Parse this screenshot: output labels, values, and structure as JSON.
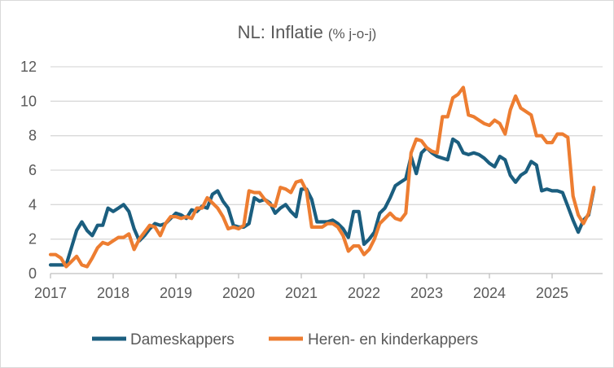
{
  "chart_data": {
    "type": "line",
    "title": "NL: Inflatie",
    "subtitle": "(% j-o-j)",
    "xlabel": "",
    "ylabel": "",
    "ylim": [
      0,
      12
    ],
    "yticks": [
      "0",
      "2",
      "4",
      "6",
      "8",
      "10",
      "12"
    ],
    "xticks": [
      "2017",
      "2018",
      "2019",
      "2020",
      "2021",
      "2022",
      "2023",
      "2024",
      "2025"
    ],
    "x_start": "2017-01",
    "frequency": "monthly",
    "grid": true,
    "legend_position": "bottom",
    "series": [
      {
        "name": "Dameskappers",
        "color": "#1b5e7f",
        "values": [
          0.5,
          0.5,
          0.5,
          0.5,
          1.5,
          2.5,
          3.0,
          2.5,
          2.2,
          2.8,
          2.8,
          3.8,
          3.6,
          3.8,
          4.0,
          3.6,
          2.6,
          1.9,
          2.2,
          2.6,
          2.9,
          2.8,
          2.9,
          3.2,
          3.5,
          3.4,
          3.2,
          3.7,
          3.6,
          3.9,
          3.8,
          4.6,
          4.8,
          4.2,
          3.8,
          2.8,
          2.7,
          2.7,
          2.9,
          4.4,
          4.2,
          4.3,
          4.1,
          3.5,
          3.8,
          4.0,
          3.6,
          3.3,
          4.9,
          4.9,
          4.3,
          3.0,
          3.0,
          3.0,
          3.1,
          2.9,
          2.6,
          2.1,
          3.6,
          3.6,
          1.7,
          2.0,
          2.4,
          3.5,
          3.8,
          4.4,
          5.1,
          5.3,
          5.5,
          6.8,
          5.8,
          7.0,
          7.3,
          7.0,
          6.8,
          6.7,
          6.6,
          7.8,
          7.6,
          7.0,
          6.9,
          7.0,
          6.9,
          6.7,
          6.4,
          6.2,
          6.8,
          6.6,
          5.7,
          5.3,
          5.7,
          5.9,
          6.5,
          6.3,
          4.8,
          4.9,
          4.8,
          4.8,
          4.7,
          3.9,
          3.1,
          2.4,
          3.1,
          3.4,
          4.9
        ]
      },
      {
        "name": "Heren- en kinderkappers",
        "color": "#ed7d31",
        "values": [
          1.1,
          1.1,
          0.9,
          0.4,
          0.7,
          1.0,
          0.5,
          0.4,
          0.9,
          1.5,
          1.8,
          1.7,
          1.9,
          2.1,
          2.1,
          2.3,
          1.4,
          2.0,
          2.4,
          2.8,
          2.7,
          2.2,
          2.9,
          3.3,
          3.3,
          3.2,
          3.3,
          3.2,
          3.8,
          3.8,
          4.4,
          4.1,
          3.8,
          3.3,
          2.6,
          2.7,
          2.6,
          2.8,
          4.8,
          4.7,
          4.7,
          4.3,
          4.0,
          3.9,
          5.0,
          4.9,
          4.7,
          5.3,
          5.4,
          4.8,
          2.7,
          2.7,
          2.7,
          2.9,
          2.9,
          2.7,
          2.2,
          1.3,
          1.6,
          1.6,
          1.1,
          1.4,
          2.0,
          2.9,
          3.2,
          3.5,
          3.2,
          3.1,
          3.5,
          7.0,
          7.8,
          7.7,
          7.3,
          7.1,
          7.0,
          9.1,
          9.1,
          10.2,
          10.4,
          10.8,
          9.2,
          9.1,
          8.9,
          8.7,
          8.6,
          8.9,
          8.7,
          8.1,
          9.5,
          10.3,
          9.6,
          9.4,
          9.2,
          8.0,
          8.0,
          7.6,
          7.6,
          8.1,
          8.1,
          7.9,
          4.5,
          3.4,
          2.9,
          3.5,
          5.0
        ]
      }
    ]
  }
}
